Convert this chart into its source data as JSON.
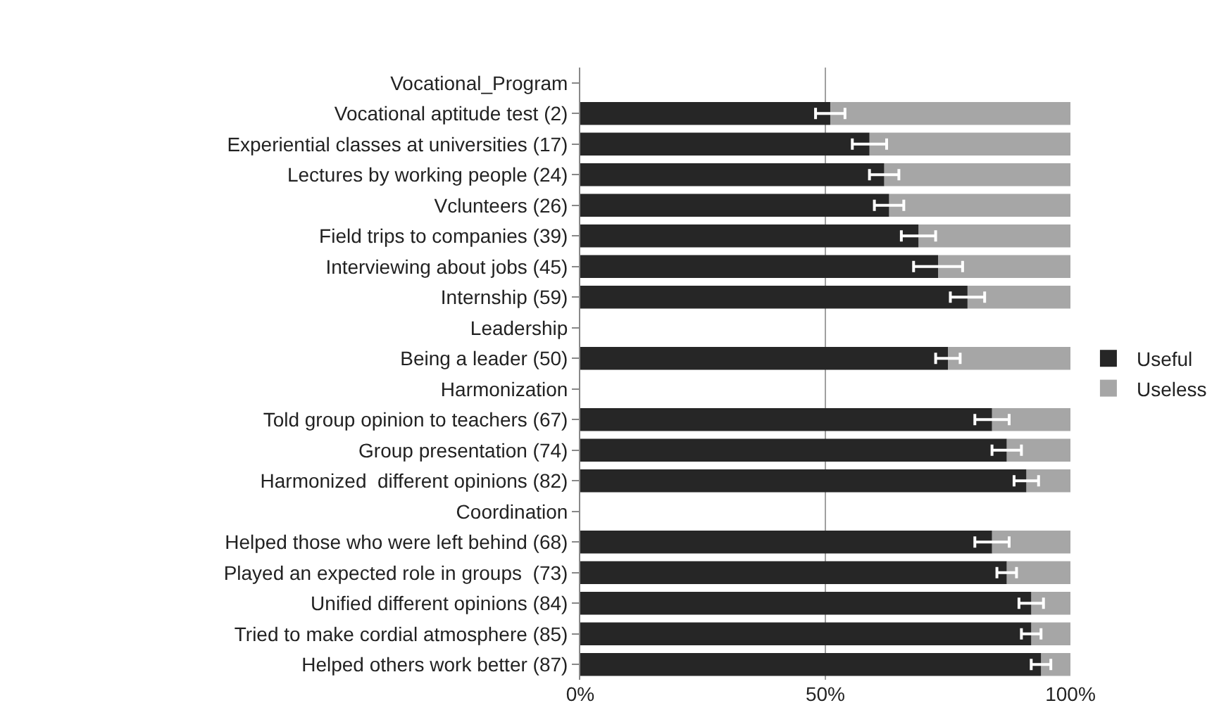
{
  "chart_data": {
    "type": "bar",
    "orientation": "horizontal",
    "stacked": true,
    "categories": [
      "Vocational_Program",
      "Vocational aptitude test (2)",
      "Experiential classes at universities (17)",
      "Lectures by working people (24)",
      "Vclunteers (26)",
      "Field trips to companies (39)",
      "Interviewing about jobs (45)",
      "Internship (59)",
      "Leadership",
      "Being a leader (50)",
      "Harmonization",
      "Told group opinion to teachers (67)",
      "Group presentation (74)",
      "Harmonized  different opinions (82)",
      "Coordination",
      "Helped those who were left behind (68)",
      "Played an expected role in groups  (73)",
      "Unified different opinions (84)",
      "Tried to make cordial atmosphere (85)",
      "Helped others work better (87)"
    ],
    "series": [
      {
        "name": "Useful",
        "color": "#262626",
        "values": [
          null,
          51,
          59,
          62,
          63,
          69,
          73,
          79,
          null,
          75,
          null,
          84,
          87,
          91,
          null,
          84,
          87,
          92,
          92,
          94
        ],
        "errors": [
          null,
          3,
          3.5,
          3,
          3,
          3.5,
          5,
          3.5,
          null,
          2.5,
          null,
          3.5,
          3,
          2.5,
          null,
          3.5,
          2,
          2.5,
          2,
          2
        ]
      },
      {
        "name": "Useless",
        "color": "#a6a6a6",
        "values": [
          null,
          49,
          41,
          38,
          37,
          31,
          27,
          21,
          null,
          25,
          null,
          16,
          13,
          9,
          null,
          16,
          13,
          8,
          8,
          6
        ]
      }
    ],
    "xlim": [
      0,
      100
    ],
    "xticks": [
      {
        "value": 0,
        "label": "0%"
      },
      {
        "value": 50,
        "label": "50%"
      },
      {
        "value": 100,
        "label": "100%"
      }
    ],
    "grid": "x",
    "legend": "right"
  }
}
